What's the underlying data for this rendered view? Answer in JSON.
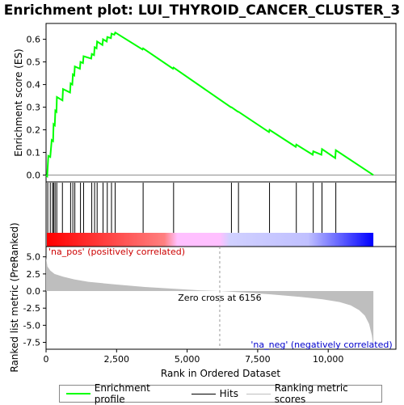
{
  "chart_data": {
    "type": "line",
    "title": "Enrichment plot: LUI_THYROID_CANCER_CLUSTER_3",
    "es_panel": {
      "ylabel": "Enrichment score (ES)",
      "ylim": [
        -0.03,
        0.67
      ],
      "yticks": [
        0.0,
        0.1,
        0.2,
        0.3,
        0.4,
        0.5,
        0.6
      ],
      "ytick_labels": [
        "0.0",
        "0.1",
        "0.2",
        "0.3",
        "0.4",
        "0.5",
        "0.6"
      ],
      "series": [
        {
          "name": "Enrichment profile",
          "color": "#00ff00",
          "x": [
            0,
            40,
            80,
            150,
            200,
            250,
            265,
            310,
            330,
            370,
            385,
            580,
            600,
            850,
            870,
            930,
            950,
            1000,
            1020,
            1200,
            1220,
            1310,
            1330,
            1600,
            1620,
            1700,
            1720,
            1790,
            1810,
            2000,
            2020,
            2150,
            2170,
            2300,
            2320,
            2420,
            2450,
            3420,
            3440,
            4500,
            4520,
            6550,
            6570,
            6800,
            6820,
            7900,
            7920,
            8850,
            8870,
            9450,
            9470,
            9760,
            9780,
            10250,
            10270,
            11600
          ],
          "y": [
            0.0,
            -0.005,
            0.085,
            0.08,
            0.155,
            0.15,
            0.225,
            0.22,
            0.285,
            0.28,
            0.345,
            0.33,
            0.38,
            0.365,
            0.405,
            0.4,
            0.445,
            0.44,
            0.48,
            0.47,
            0.5,
            0.495,
            0.525,
            0.515,
            0.535,
            0.53,
            0.565,
            0.56,
            0.59,
            0.575,
            0.6,
            0.59,
            0.61,
            0.605,
            0.625,
            0.62,
            0.63,
            0.555,
            0.56,
            0.47,
            0.475,
            0.3,
            0.3,
            0.28,
            0.28,
            0.19,
            0.2,
            0.125,
            0.135,
            0.09,
            0.105,
            0.09,
            0.115,
            0.075,
            0.11,
            0.0
          ]
        }
      ]
    },
    "hits_panel": {
      "hit_positions": [
        60,
        150,
        230,
        270,
        320,
        380,
        580,
        870,
        950,
        1020,
        1220,
        1330,
        1620,
        1720,
        1810,
        2020,
        2170,
        2320,
        2450,
        3440,
        4520,
        6570,
        6820,
        7920,
        8870,
        9470,
        9780,
        10270
      ],
      "hit_color": "#000000",
      "gradient_colors": [
        "#ff0000",
        "#ff8080",
        "#ffc0ff",
        "#c0c0ff",
        "#0000ff"
      ]
    },
    "rank_panel": {
      "ylabel": "Ranked list metric (PreRanked)",
      "xlabel": "Rank in Ordered Dataset",
      "ylim": [
        -8.5,
        6.5
      ],
      "yticks": [
        5.0,
        2.5,
        0.0,
        -2.5,
        -5.0,
        -7.5
      ],
      "ytick_labels": [
        "5.0",
        "2.5",
        "0.0",
        "-2.5",
        "-5.0",
        "-7.5"
      ],
      "xlim": [
        0,
        12400
      ],
      "xticks": [
        0,
        2500,
        5000,
        7500,
        10000
      ],
      "xtick_labels": [
        "0",
        "2,500",
        "5,000",
        "7,500",
        "10,000"
      ],
      "metric_x": [
        0,
        50,
        150,
        300,
        600,
        1000,
        1500,
        2500,
        3500,
        4500,
        5500,
        6156,
        7000,
        8000,
        9000,
        9800,
        10400,
        10800,
        11100,
        11300,
        11450,
        11550,
        11600
      ],
      "metric_y": [
        4.9,
        3.6,
        3.0,
        2.5,
        2.1,
        1.7,
        1.35,
        0.95,
        0.6,
        0.35,
        0.1,
        0.0,
        -0.2,
        -0.5,
        -0.85,
        -1.2,
        -1.6,
        -2.1,
        -2.8,
        -3.6,
        -4.8,
        -6.5,
        -8.2
      ],
      "fill_color": "#bebebe",
      "zero_cross_rank": 6156,
      "zero_cross_label": "Zero cross at 6156",
      "pos_label": "'na_pos' (positively correlated)",
      "neg_label": "'na_neg' (negatively correlated)"
    },
    "legend": [
      {
        "label": "Enrichment profile",
        "color": "#00ff00"
      },
      {
        "label": "Hits",
        "color": "#000000"
      },
      {
        "label": "Ranking metric scores",
        "color": "#bebebe"
      }
    ]
  }
}
